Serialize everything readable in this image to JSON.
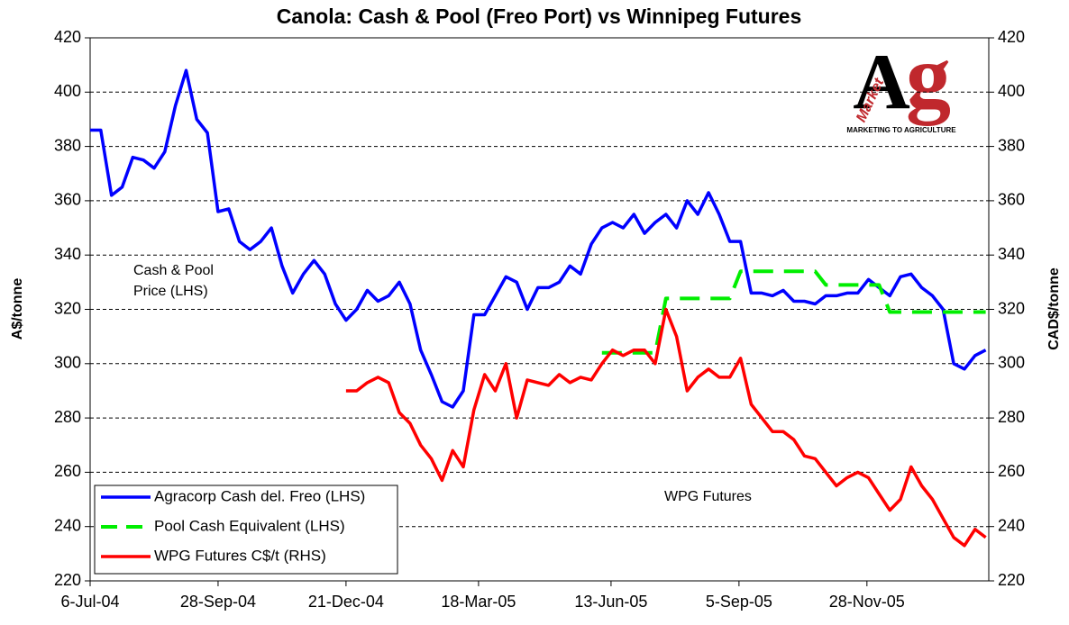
{
  "chart_data": {
    "type": "line",
    "title": "Canola: Cash & Pool (Freo Port) vs Winnipeg Futures",
    "y_label": "A$/tonne",
    "y2_label": "CAD$/tonne",
    "annotations": [
      {
        "lines": [
          "Cash & Pool",
          "Price (LHS)"
        ]
      },
      {
        "lines": [
          "WPG Futures"
        ]
      }
    ],
    "logo": {
      "word": "Market",
      "letter_a": "A",
      "letter_g": "g",
      "tagline": "MARKETING TO AGRICULTURE"
    },
    "grid": true,
    "legend": "lower left",
    "xlim": [
      "2004-07-06",
      "2006-02-16"
    ],
    "xticks": [
      {
        "value": "2004-07-06",
        "label": "6-Jul-04"
      },
      {
        "value": "2004-09-28",
        "label": "28-Sep-04"
      },
      {
        "value": "2004-12-21",
        "label": "21-Dec-04"
      },
      {
        "value": "2005-03-18",
        "label": "18-Mar-05"
      },
      {
        "value": "2005-06-13",
        "label": "13-Jun-05"
      },
      {
        "value": "2005-09-05",
        "label": "5-Sep-05"
      },
      {
        "value": "2005-11-28",
        "label": "28-Nov-05"
      }
    ],
    "ylim": [
      220,
      420
    ],
    "yticks": [
      220,
      240,
      260,
      280,
      300,
      320,
      340,
      360,
      380,
      400,
      420
    ],
    "y2lim": [
      220,
      420
    ],
    "y2ticks": [
      220,
      240,
      260,
      280,
      300,
      320,
      340,
      360,
      380,
      400,
      420
    ],
    "x": [
      "2004-07-06",
      "2004-07-13",
      "2004-07-20",
      "2004-07-27",
      "2004-08-03",
      "2004-08-10",
      "2004-08-17",
      "2004-08-24",
      "2004-08-31",
      "2004-09-07",
      "2004-09-14",
      "2004-09-21",
      "2004-09-28",
      "2004-10-05",
      "2004-10-12",
      "2004-10-19",
      "2004-10-26",
      "2004-11-02",
      "2004-11-09",
      "2004-11-16",
      "2004-11-23",
      "2004-11-30",
      "2004-12-07",
      "2004-12-14",
      "2004-12-21",
      "2004-12-28",
      "2005-01-04",
      "2005-01-11",
      "2005-01-18",
      "2005-01-25",
      "2005-02-01",
      "2005-02-08",
      "2005-02-15",
      "2005-02-22",
      "2005-03-01",
      "2005-03-08",
      "2005-03-15",
      "2005-03-22",
      "2005-03-29",
      "2005-04-05",
      "2005-04-12",
      "2005-04-19",
      "2005-04-26",
      "2005-05-03",
      "2005-05-10",
      "2005-05-17",
      "2005-05-24",
      "2005-05-31",
      "2005-06-07",
      "2005-06-14",
      "2005-06-21",
      "2005-06-28",
      "2005-07-05",
      "2005-07-12",
      "2005-07-19",
      "2005-07-26",
      "2005-08-02",
      "2005-08-09",
      "2005-08-16",
      "2005-08-23",
      "2005-08-30",
      "2005-09-06",
      "2005-09-13",
      "2005-09-20",
      "2005-09-27",
      "2005-10-04",
      "2005-10-11",
      "2005-10-18",
      "2005-10-25",
      "2005-11-01",
      "2005-11-08",
      "2005-11-15",
      "2005-11-22",
      "2005-11-29",
      "2005-12-06",
      "2005-12-13",
      "2005-12-20",
      "2005-12-27",
      "2006-01-03",
      "2006-01-10",
      "2006-01-17",
      "2006-01-24",
      "2006-01-31",
      "2006-02-07",
      "2006-02-14"
    ],
    "series": [
      {
        "name": "Agracorp Cash del. Freo (LHS)",
        "color": "#0000ff",
        "dash": false,
        "axis": "y",
        "values": [
          386,
          386,
          362,
          365,
          376,
          375,
          372,
          378,
          395,
          408,
          390,
          385,
          356,
          357,
          345,
          342,
          345,
          350,
          336,
          326,
          333,
          338,
          333,
          322,
          316,
          320,
          327,
          323,
          325,
          330,
          322,
          305,
          296,
          286,
          284,
          290,
          318,
          318,
          325,
          332,
          330,
          320,
          328,
          328,
          330,
          336,
          333,
          344,
          350,
          352,
          350,
          355,
          348,
          352,
          355,
          350,
          360,
          355,
          363,
          355,
          345,
          345,
          326,
          326,
          325,
          327,
          323,
          323,
          322,
          325,
          325,
          326,
          326,
          331,
          328,
          325,
          332,
          333,
          328,
          325,
          320,
          300,
          298,
          303,
          305
        ]
      },
      {
        "name": "Pool Cash Equivalent (LHS)",
        "color": "#00ee00",
        "dash": true,
        "axis": "y",
        "values": [
          null,
          null,
          null,
          null,
          null,
          null,
          null,
          null,
          null,
          null,
          null,
          null,
          null,
          null,
          null,
          null,
          null,
          null,
          null,
          null,
          null,
          null,
          null,
          null,
          null,
          null,
          null,
          null,
          null,
          null,
          null,
          null,
          null,
          null,
          null,
          null,
          null,
          null,
          null,
          null,
          null,
          null,
          null,
          null,
          null,
          null,
          null,
          null,
          304,
          304,
          304,
          304,
          304,
          304,
          324,
          324,
          324,
          324,
          324,
          324,
          324,
          334,
          334,
          334,
          334,
          334,
          334,
          334,
          334,
          329,
          329,
          329,
          329,
          329,
          329,
          319,
          319,
          319,
          319,
          319,
          319,
          319,
          319,
          319,
          319
        ]
      },
      {
        "name": "WPG Futures C$/t (RHS)",
        "color": "#ff0000",
        "dash": false,
        "axis": "y2",
        "values": [
          null,
          null,
          null,
          null,
          null,
          null,
          null,
          null,
          null,
          null,
          null,
          null,
          null,
          null,
          null,
          null,
          null,
          null,
          null,
          null,
          null,
          null,
          null,
          null,
          290,
          290,
          293,
          295,
          293,
          282,
          278,
          270,
          265,
          257,
          268,
          262,
          283,
          296,
          290,
          300,
          280,
          294,
          293,
          292,
          296,
          293,
          295,
          294,
          300,
          305,
          303,
          305,
          305,
          300,
          320,
          310,
          290,
          295,
          298,
          295,
          295,
          302,
          285,
          280,
          275,
          275,
          272,
          266,
          265,
          260,
          255,
          258,
          260,
          258,
          252,
          246,
          250,
          262,
          255,
          250,
          243,
          236,
          233,
          239,
          236
        ]
      }
    ]
  }
}
